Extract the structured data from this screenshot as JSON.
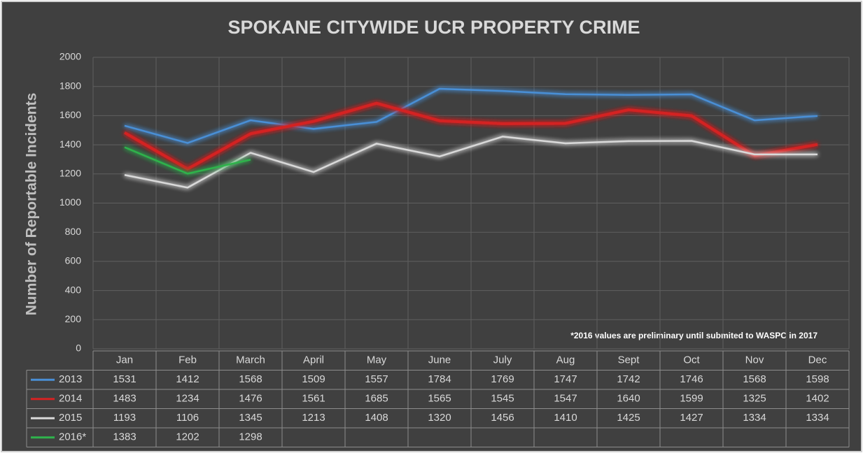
{
  "chart_data": {
    "type": "line",
    "title": "SPOKANE CITYWIDE UCR PROPERTY CRIME",
    "y_label": "Number of Reportable Incidents",
    "annotation": "*2016 values are preliminary until submited to WASPC in 2017",
    "categories": [
      "Jan",
      "Feb",
      "March",
      "April",
      "May",
      "June",
      "July",
      "Aug",
      "Sept",
      "Oct",
      "Nov",
      "Dec"
    ],
    "series": [
      {
        "name": "2013",
        "color": "#4a8fd6",
        "values": [
          1531,
          1412,
          1568,
          1509,
          1557,
          1784,
          1769,
          1747,
          1742,
          1746,
          1568,
          1598
        ]
      },
      {
        "name": "2014",
        "color": "#d42222",
        "values": [
          1483,
          1234,
          1476,
          1561,
          1685,
          1565,
          1545,
          1547,
          1640,
          1599,
          1325,
          1402
        ]
      },
      {
        "name": "2015",
        "color": "#d9d9d9",
        "values": [
          1193,
          1106,
          1345,
          1213,
          1408,
          1320,
          1456,
          1410,
          1425,
          1427,
          1334,
          1334
        ]
      },
      {
        "name": "2016*",
        "color": "#2fb34c",
        "values": [
          1383,
          1202,
          1298,
          null,
          null,
          null,
          null,
          null,
          null,
          null,
          null,
          null
        ]
      }
    ],
    "ylim": [
      0,
      2000
    ],
    "yticks": [
      0,
      200,
      400,
      600,
      800,
      1000,
      1200,
      1400,
      1600,
      1800,
      2000
    ],
    "grid": true,
    "data_table": true
  }
}
